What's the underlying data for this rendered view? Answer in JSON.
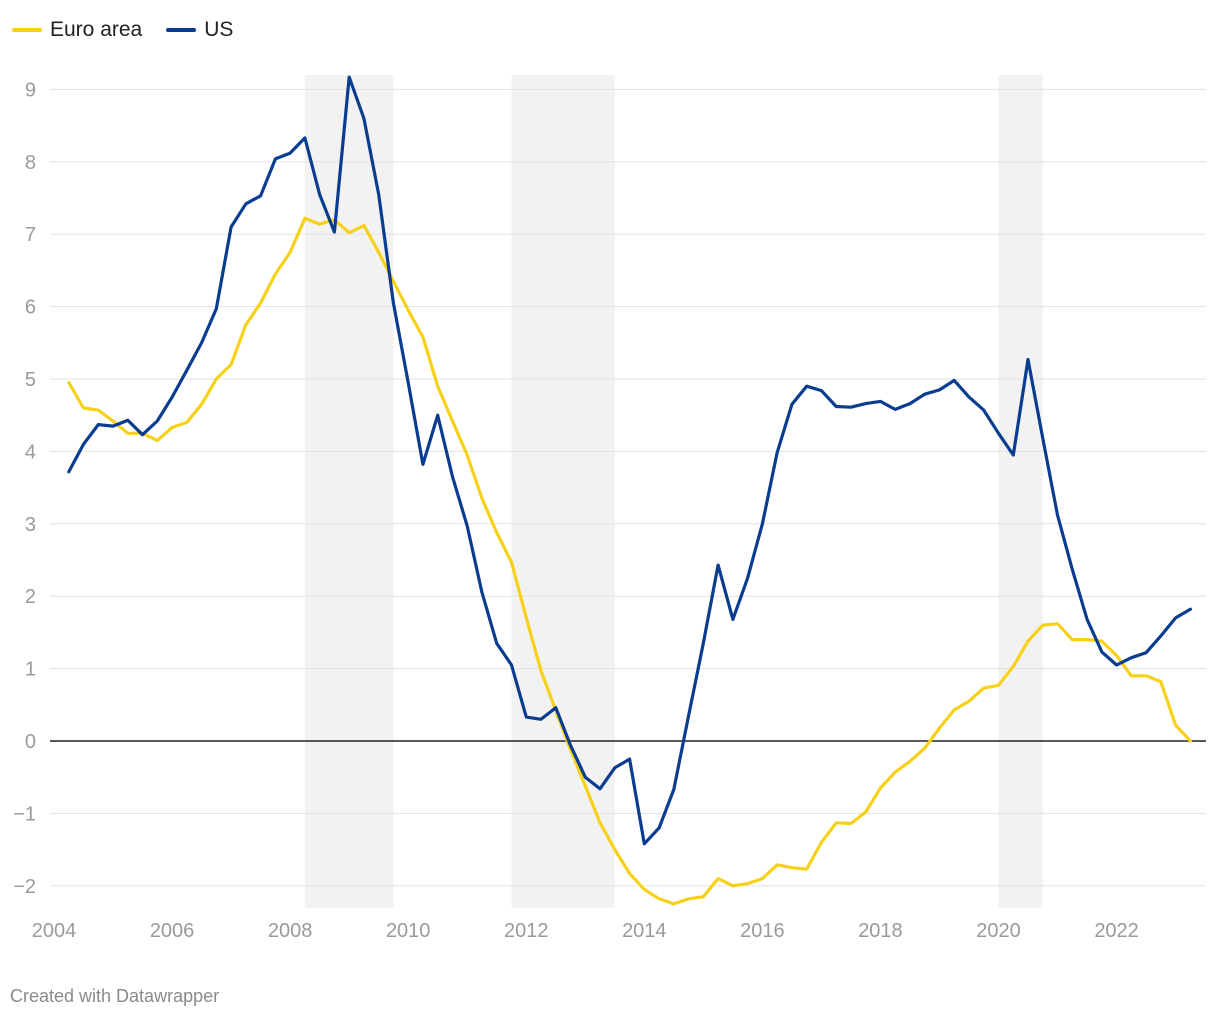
{
  "colors": {
    "euro": "#f7d117",
    "us": "#0a3d8f",
    "recession": "#f2f2f2",
    "grid": "#e3e3e3",
    "zero": "#222222"
  },
  "footer": {
    "credit": "Created with Datawrapper"
  },
  "chart_data": {
    "type": "line",
    "title": "",
    "xlabel": "",
    "ylabel": "",
    "xlim": [
      2004,
      2023.75
    ],
    "ylim": [
      -2.3,
      9.2
    ],
    "xticks": [
      2004,
      2006,
      2008,
      2010,
      2012,
      2014,
      2016,
      2018,
      2020,
      2022
    ],
    "yticks": [
      -2,
      -1,
      0,
      1,
      2,
      3,
      4,
      5,
      6,
      7,
      8,
      9
    ],
    "ytick_labels": [
      "−2",
      "−1",
      "0",
      "1",
      "2",
      "3",
      "4",
      "5",
      "6",
      "7",
      "8",
      "9"
    ],
    "shaded_periods": [
      [
        2008.25,
        2009.75
      ],
      [
        2011.75,
        2013.5
      ],
      [
        2020.0,
        2020.75
      ]
    ],
    "legend_position": "top-left",
    "x": [
      2004.25,
      2004.5,
      2004.75,
      2005.0,
      2005.25,
      2005.5,
      2005.75,
      2006.0,
      2006.25,
      2006.5,
      2006.75,
      2007.0,
      2007.25,
      2007.5,
      2007.75,
      2008.0,
      2008.25,
      2008.5,
      2008.75,
      2009.0,
      2009.25,
      2009.5,
      2009.75,
      2010.0,
      2010.25,
      2010.5,
      2010.75,
      2011.0,
      2011.25,
      2011.5,
      2011.75,
      2012.0,
      2012.25,
      2012.5,
      2012.75,
      2013.0,
      2013.25,
      2013.5,
      2013.75,
      2014.0,
      2014.25,
      2014.5,
      2014.75,
      2015.0,
      2015.25,
      2015.5,
      2015.75,
      2016.0,
      2016.25,
      2016.5,
      2016.75,
      2017.0,
      2017.25,
      2017.5,
      2017.75,
      2018.0,
      2018.25,
      2018.5,
      2018.75,
      2019.0,
      2019.25,
      2019.5,
      2019.75,
      2020.0,
      2020.25,
      2020.5,
      2020.75,
      2021.0,
      2021.25,
      2021.5,
      2021.75,
      2022.0,
      2022.25,
      2022.5,
      2022.75,
      2023.0,
      2023.25
    ],
    "series": [
      {
        "name": "Euro area",
        "values": [
          4.95,
          4.6,
          4.57,
          4.42,
          4.25,
          4.25,
          4.15,
          4.33,
          4.4,
          4.65,
          5.0,
          5.2,
          5.75,
          6.05,
          6.45,
          6.75,
          7.22,
          7.14,
          7.2,
          7.02,
          7.12,
          6.75,
          6.35,
          5.95,
          5.58,
          4.9,
          4.42,
          3.95,
          3.35,
          2.88,
          2.47,
          1.7,
          0.97,
          0.42,
          -0.12,
          -0.62,
          -1.13,
          -1.5,
          -1.83,
          -2.05,
          -2.18,
          -2.25,
          -2.18,
          -2.15,
          -1.9,
          -2.0,
          -1.97,
          -1.9,
          -1.71,
          -1.75,
          -1.77,
          -1.4,
          -1.13,
          -1.14,
          -0.98,
          -0.65,
          -0.43,
          -0.28,
          -0.1,
          0.18,
          0.43,
          0.55,
          0.73,
          0.77,
          1.03,
          1.38,
          1.6,
          1.62,
          1.4,
          1.4,
          1.38,
          1.18,
          0.9,
          0.9,
          0.82,
          0.22,
          0.0
        ]
      },
      {
        "name": "US",
        "values": [
          3.72,
          4.1,
          4.37,
          4.35,
          4.43,
          4.23,
          4.42,
          4.75,
          5.12,
          5.5,
          5.97,
          7.1,
          7.42,
          7.53,
          8.04,
          8.12,
          8.33,
          7.55,
          7.03,
          9.17,
          8.6,
          7.55,
          6.05,
          4.95,
          3.82,
          4.5,
          3.65,
          2.97,
          2.05,
          1.35,
          1.05,
          0.33,
          0.3,
          0.46,
          -0.06,
          -0.5,
          -0.66,
          -0.37,
          -0.25,
          -1.42,
          -1.2,
          -0.67,
          0.35,
          1.35,
          2.43,
          1.68,
          2.25,
          3.0,
          3.98,
          4.65,
          4.9,
          4.84,
          4.62,
          4.61,
          4.66,
          4.69,
          4.58,
          4.66,
          4.79,
          4.85,
          4.98,
          4.75,
          4.57,
          4.25,
          3.95,
          5.27,
          4.18,
          3.12,
          2.37,
          1.68,
          1.23,
          1.05,
          1.15,
          1.22,
          1.45,
          1.7,
          1.82
        ]
      }
    ]
  }
}
